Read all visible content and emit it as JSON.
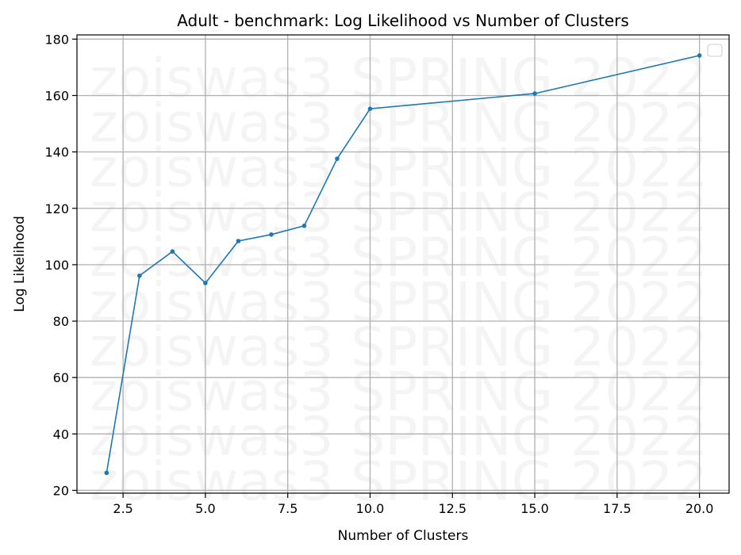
{
  "chart_data": {
    "type": "line",
    "title": "Adult - benchmark: Log Likelihood vs Number of Clusters",
    "xlabel": "Number of Clusters",
    "ylabel": "Log Likelihood",
    "xlim": [
      1.1,
      20.9
    ],
    "ylim": [
      19,
      181.5
    ],
    "x_ticks": [
      2.5,
      5.0,
      7.5,
      10.0,
      12.5,
      15.0,
      17.5,
      20.0
    ],
    "x_tick_labels": [
      "2.5",
      "5.0",
      "7.5",
      "10.0",
      "12.5",
      "15.0",
      "17.5",
      "20.0"
    ],
    "y_ticks": [
      20,
      40,
      60,
      80,
      100,
      120,
      140,
      160,
      180
    ],
    "y_tick_labels": [
      "20",
      "40",
      "60",
      "80",
      "100",
      "120",
      "140",
      "160",
      "180"
    ],
    "grid": true,
    "legend": "top-right",
    "watermark": "zoiswas3 SPRING 2022",
    "series": [
      {
        "color": "#1f77b4",
        "x": [
          2,
          3,
          4,
          5,
          6,
          7,
          8,
          9,
          10,
          15,
          20
        ],
        "y": [
          26.2,
          96.1,
          104.7,
          93.5,
          108.4,
          110.7,
          113.8,
          137.6,
          155.3,
          160.7,
          174.2
        ]
      }
    ]
  }
}
